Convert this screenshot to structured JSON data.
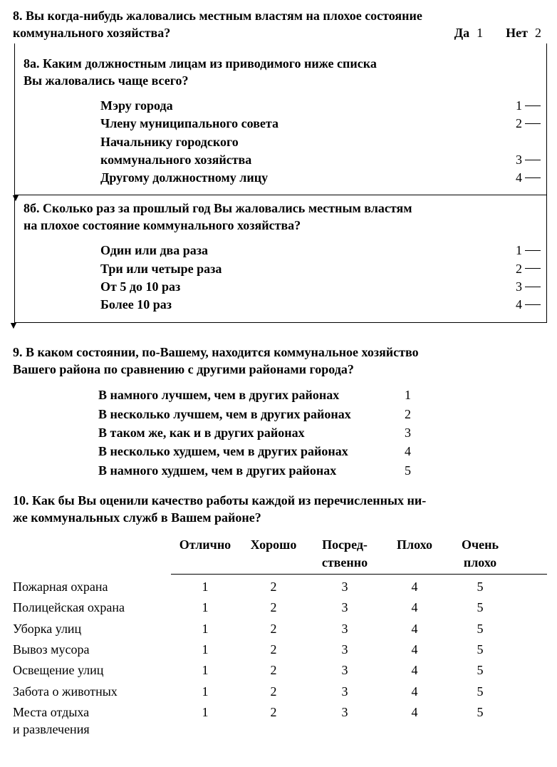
{
  "q8": {
    "text_line1": "8. Вы когда-нибудь жаловались местным властям на плохое состояние",
    "text_line2": "коммунального хозяйства?",
    "yes_label": "Да",
    "yes_code": "1",
    "no_label": "Нет",
    "no_code": "2"
  },
  "q8a": {
    "title_line1": "8а. Каким должностным лицам из приводимого ниже списка",
    "title_line2": "Вы жаловались чаще всего?",
    "options": [
      {
        "label": "Мэру города",
        "code": "1"
      },
      {
        "label": "Члену муниципального совета",
        "code": "2"
      },
      {
        "label": "Начальнику городского",
        "code": ""
      },
      {
        "label": "коммунального хозяйства",
        "code": "3"
      },
      {
        "label": "Другому должностному лицу",
        "code": "4"
      }
    ]
  },
  "q8b": {
    "title_line1": "8б. Сколько раз за прошлый год Вы жаловались местным властям",
    "title_line2": "на плохое состояние коммунального хозяйства?",
    "options": [
      {
        "label": "Один или два раза",
        "code": "1"
      },
      {
        "label": "Три или четыре раза",
        "code": "2"
      },
      {
        "label": "От 5 до 10 раз",
        "code": "3"
      },
      {
        "label": "Более 10 раз",
        "code": "4"
      }
    ]
  },
  "q9": {
    "text_line1": "9. В каком состоянии, по-Вашему, находится коммунальное хозяйство",
    "text_line2": "Вашего района по сравнению с другими районами города?",
    "options": [
      {
        "label": "В намного лучшем, чем в других районах",
        "code": "1"
      },
      {
        "label": "В несколько лучшем, чем в других районах",
        "code": "2"
      },
      {
        "label": "В таком же, как и в других районах",
        "code": "3"
      },
      {
        "label": "В несколько худшем, чем в других районах",
        "code": "4"
      },
      {
        "label": "В намного худшем, чем в других районах",
        "code": "5"
      }
    ]
  },
  "q10": {
    "text_line1": "10. Как бы Вы оценили качество работы каждой из перечисленных ни-",
    "text_line2": "же коммунальных служб в Вашем районе?",
    "headers": {
      "c1": "Отлично",
      "c2": "Хорошо",
      "c3a": "Посред-",
      "c3b": "ственно",
      "c4": "Плохо",
      "c5a": "Очень",
      "c5b": "плохо"
    },
    "codes": [
      "1",
      "2",
      "3",
      "4",
      "5"
    ],
    "services": [
      "Пожарная охрана",
      "Полицейская охрана",
      "Уборка улиц",
      "Вывоз мусора",
      "Освещение улиц",
      "Забота о животных",
      "Места отдыха\nи развлечения"
    ]
  }
}
